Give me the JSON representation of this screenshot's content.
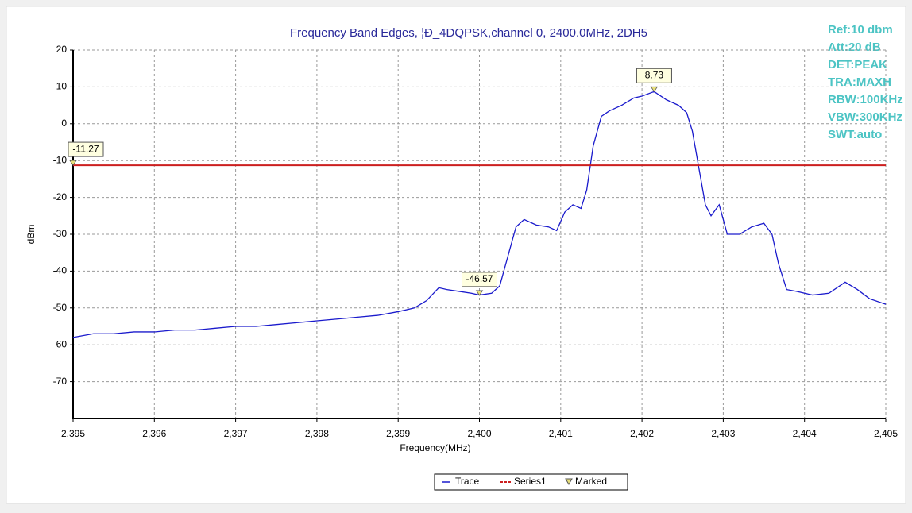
{
  "chart_data": {
    "type": "line",
    "title": "Frequency Band Edges, ¦Ð_4DQPSK,channel 0, 2400.0MHz, 2DH5",
    "info": [
      "Ref:10 dbm",
      "Att:20 dB",
      "DET:PEAK",
      "TRA:MAXH",
      "RBW:100KHz",
      "VBW:300KHz",
      "SWT:auto"
    ],
    "x_label": "Frequency(MHz)",
    "y_label": "dBm",
    "xlim": [
      2395,
      2405
    ],
    "xticks": [
      {
        "value": 2395,
        "label": "2,395"
      },
      {
        "value": 2396,
        "label": "2,396"
      },
      {
        "value": 2397,
        "label": "2,397"
      },
      {
        "value": 2398,
        "label": "2,398"
      },
      {
        "value": 2399,
        "label": "2,399"
      },
      {
        "value": 2400,
        "label": "2,400"
      },
      {
        "value": 2401,
        "label": "2,401"
      },
      {
        "value": 2402,
        "label": "2,402"
      },
      {
        "value": 2403,
        "label": "2,403"
      },
      {
        "value": 2404,
        "label": "2,404"
      },
      {
        "value": 2405,
        "label": "2,405"
      }
    ],
    "ylim": [
      -80,
      20
    ],
    "yticks": [
      20,
      10,
      0,
      -10,
      -20,
      -30,
      -40,
      -50,
      -60,
      -70
    ],
    "grid": true,
    "series": [
      {
        "name": "Trace",
        "color": "#1a1acc",
        "x": [
          2395,
          2395.25,
          2395.5,
          2395.75,
          2396,
          2396.25,
          2396.5,
          2396.75,
          2397,
          2397.25,
          2397.5,
          2397.75,
          2398,
          2398.25,
          2398.5,
          2398.75,
          2399,
          2399.2,
          2399.35,
          2399.5,
          2399.6,
          2399.75,
          2399.9,
          2400,
          2400.15,
          2400.25,
          2400.35,
          2400.45,
          2400.55,
          2400.7,
          2400.85,
          2400.95,
          2401.05,
          2401.15,
          2401.25,
          2401.32,
          2401.4,
          2401.5,
          2401.6,
          2401.75,
          2401.9,
          2402,
          2402.15,
          2402.3,
          2402.45,
          2402.55,
          2402.62,
          2402.7,
          2402.78,
          2402.85,
          2402.95,
          2403.05,
          2403.2,
          2403.35,
          2403.5,
          2403.6,
          2403.68,
          2403.78,
          2403.9,
          2404.1,
          2404.3,
          2404.5,
          2404.65,
          2404.8,
          2405
        ],
        "values": [
          -58,
          -57,
          -57,
          -56.5,
          -56.5,
          -56,
          -56,
          -55.5,
          -55,
          -55,
          -54.5,
          -54,
          -53.5,
          -53,
          -52.5,
          -52,
          -51,
          -50,
          -48,
          -44.5,
          -45,
          -45.5,
          -46,
          -46.5,
          -46,
          -44,
          -36,
          -28,
          -26,
          -27.5,
          -28,
          -29,
          -24,
          -22,
          -23,
          -18,
          -6,
          2,
          3.5,
          5,
          7,
          7.5,
          8.73,
          6.5,
          5,
          3,
          -2,
          -12,
          -22,
          -25,
          -22,
          -30,
          -30,
          -28,
          -27,
          -30,
          -38,
          -45,
          -45.5,
          -46.5,
          -46,
          -43,
          -45,
          -47.5,
          -49
        ]
      },
      {
        "name": "Series1",
        "color": "#cc1f1f",
        "x": [
          2395,
          2405
        ],
        "values": [
          -11.27,
          -11.27
        ]
      },
      {
        "name": "Marked",
        "color": "#e8e07a",
        "x": [
          2395,
          2400,
          2402.15
        ],
        "values": [
          -11.27,
          -46.57,
          8.73
        ]
      }
    ]
  }
}
